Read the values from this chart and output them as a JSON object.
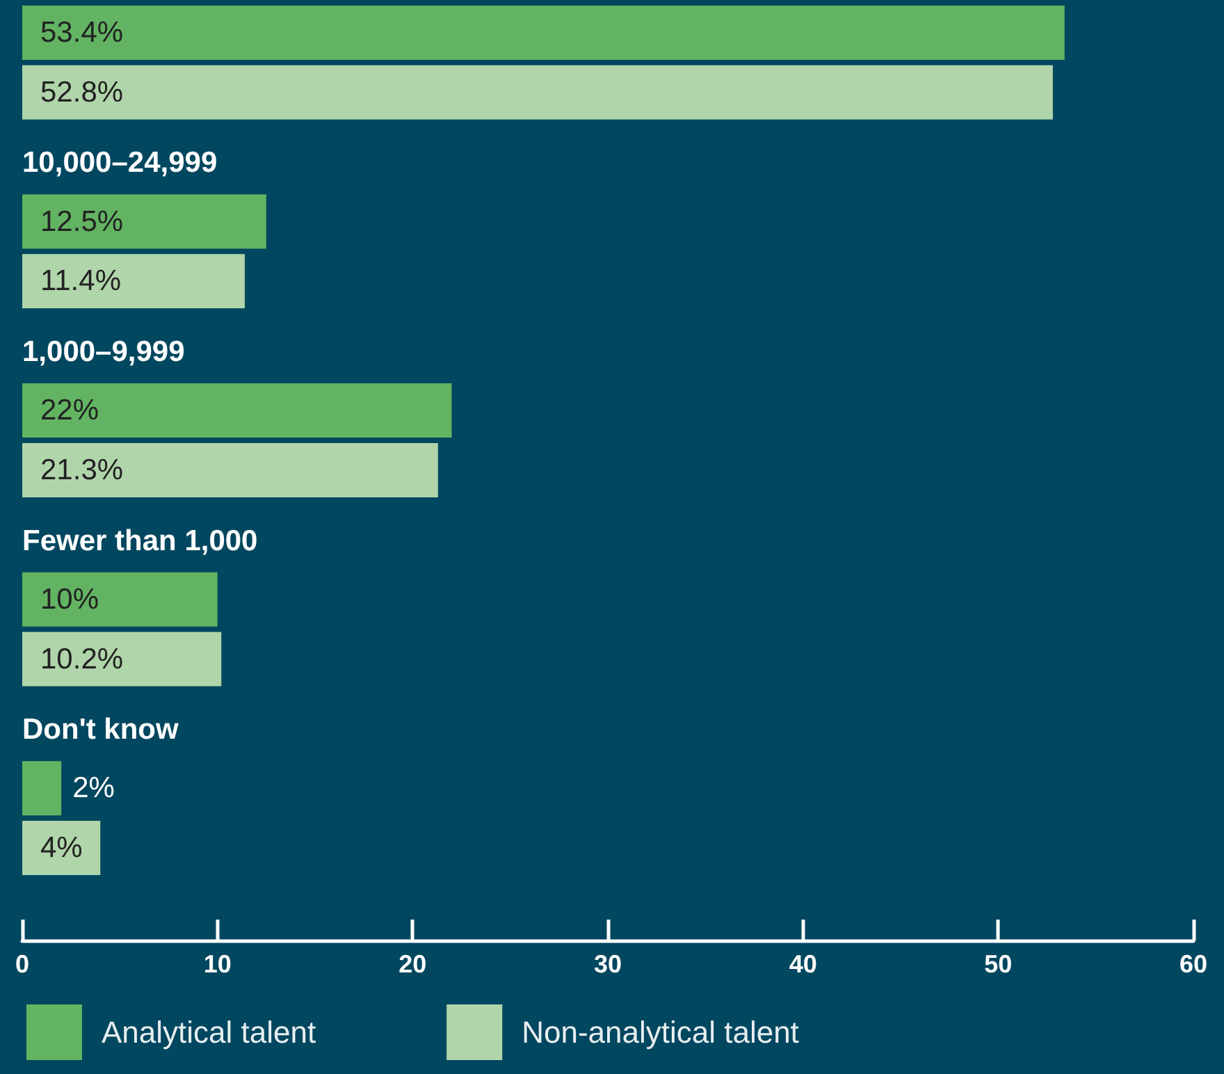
{
  "chart_data": {
    "type": "bar",
    "orientation": "horizontal",
    "categories": [
      null,
      "10,000–24,999",
      "1,000–9,999",
      "Fewer than 1,000",
      "Don't know"
    ],
    "series": [
      {
        "name": "Analytical talent",
        "color": "#62b462",
        "values": [
          53.4,
          12.5,
          22,
          10,
          2
        ],
        "value_labels": [
          "53.4%",
          "12.5%",
          "22%",
          "10%",
          "2%"
        ]
      },
      {
        "name": "Non-analytical talent",
        "color": "#b0d5aa",
        "values": [
          52.8,
          11.4,
          21.3,
          10.2,
          4
        ],
        "value_labels": [
          "52.8%",
          "11.4%",
          "21.3%",
          "10.2%",
          "4%"
        ]
      }
    ],
    "xlim": [
      0,
      60
    ],
    "xticks": [
      0,
      10,
      20,
      30,
      40,
      50,
      60
    ],
    "legend": "bottom left"
  }
}
